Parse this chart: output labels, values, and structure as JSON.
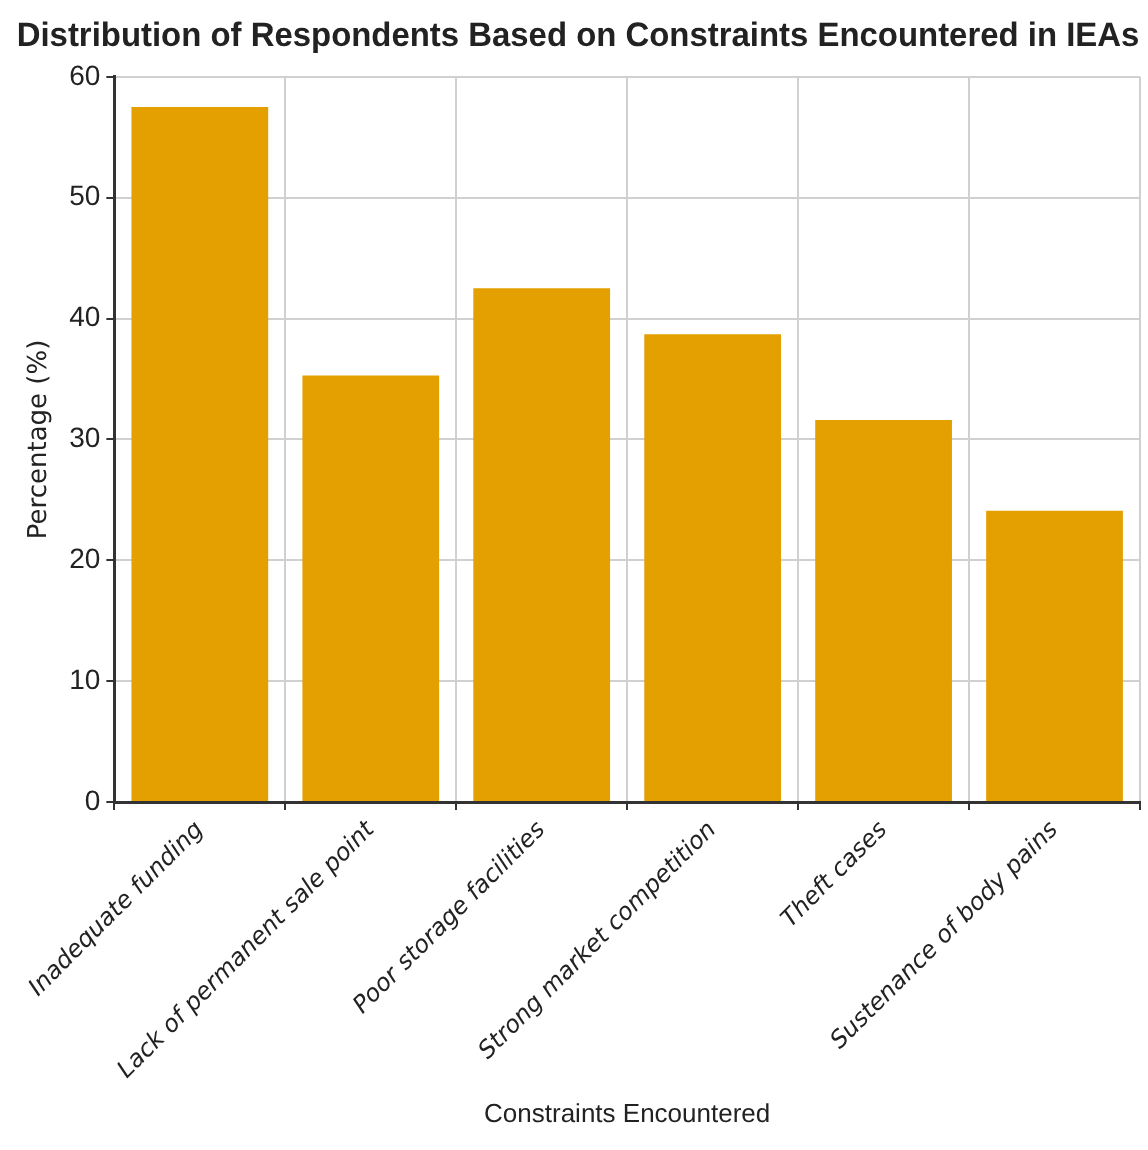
{
  "chart_data": {
    "type": "bar",
    "title": "Distribution of Respondents Based on Constraints Encountered in IEAs",
    "xlabel": "Constraints Encountered",
    "ylabel": "Percentage (%)",
    "categories": [
      "Inadequate funding",
      "Lack of permanent sale point",
      "Poor storage facilities",
      "Strong market competition",
      "Theft cases",
      "Sustenance of body pains"
    ],
    "values": [
      57.5,
      35.3,
      42.5,
      38.7,
      31.6,
      24.1
    ],
    "color": "#e3a000",
    "ylim": [
      0,
      60
    ],
    "yticks": [
      0,
      10,
      20,
      30,
      40,
      50,
      60
    ],
    "grid": true,
    "legend": false
  }
}
